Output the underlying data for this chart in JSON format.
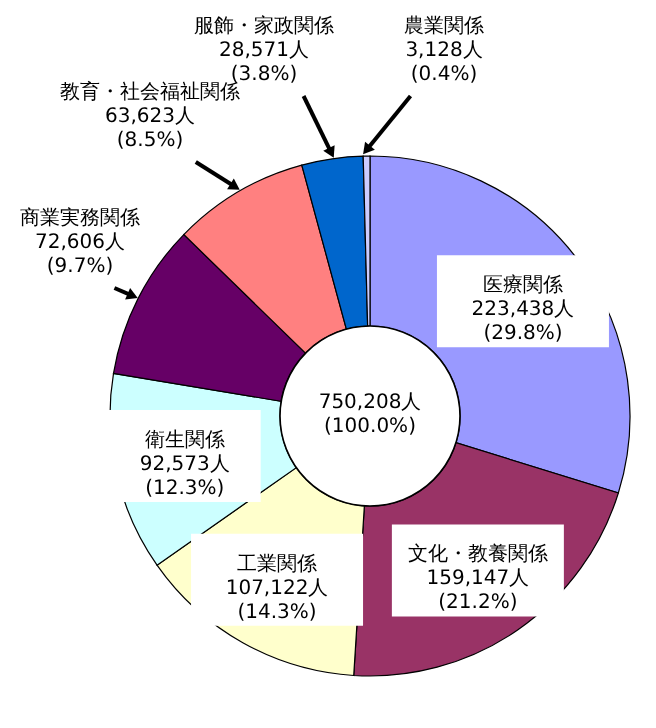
{
  "chart_data": {
    "type": "donut",
    "categories": [
      "医療関係",
      "文化・教養関係",
      "工業関係",
      "衛生関係",
      "商業実務関係",
      "教育・社会福祉関係",
      "服飾・家政関係",
      "農業関係"
    ],
    "values": [
      223438,
      159147,
      107122,
      92573,
      72606,
      63623,
      28571,
      3128
    ],
    "colors": [
      "#9999ff",
      "#993366",
      "#ffffcc",
      "#ccffff",
      "#660066",
      "#ff8080",
      "#0066cc",
      "#ccccff"
    ],
    "value_labels": [
      "223,438人\n(29.8%)",
      "159,147人\n(21.2%)",
      "107,122人\n(14.3%)",
      "92,573人\n(12.3%)",
      "72,606人\n(9.7%)",
      "63,623人\n(8.5%)",
      "28,571人\n(3.8%)",
      "3,128人\n(0.4%)"
    ],
    "annotations": [
      "750,208人\n(100.0%)"
    ]
  }
}
